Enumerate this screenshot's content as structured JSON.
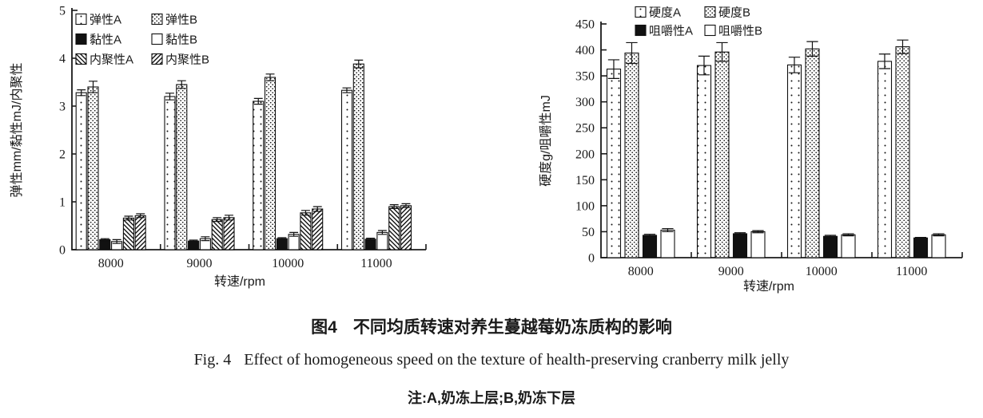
{
  "figure": {
    "caption_zh": {
      "label": "图4",
      "text": "不同均质转速对养生蔓越莓奶冻质构的影响"
    },
    "caption_en": {
      "label": "Fig. 4",
      "text": "Effect of homogeneous speed on the texture of health-preserving cranberry milk jelly"
    },
    "note": "注:A,奶冻上层;B,奶冻下层"
  },
  "chart_data": [
    {
      "type": "bar",
      "panel": "left",
      "xlabel": "转速/rpm",
      "ylabel": "弹性mm/黏性mJ/内聚性",
      "categories": [
        "8000",
        "9000",
        "10000",
        "11000"
      ],
      "ylim": [
        0,
        5
      ],
      "ytick_step": 1,
      "grid": false,
      "legend_position": "top-left, 2 columns x 3 rows",
      "bar_outline": "#111111",
      "error_bars": true,
      "series": [
        {
          "name": "弹性A",
          "pattern": "dots-sparse",
          "values": [
            3.28,
            3.2,
            3.1,
            3.33
          ],
          "errors": [
            0.06,
            0.07,
            0.06,
            0.05
          ]
        },
        {
          "name": "弹性B",
          "pattern": "dots-dense",
          "values": [
            3.4,
            3.45,
            3.6,
            3.88
          ],
          "errors": [
            0.12,
            0.08,
            0.07,
            0.08
          ]
        },
        {
          "name": "黏性A",
          "pattern": "solid-black",
          "values": [
            0.21,
            0.18,
            0.23,
            0.22
          ],
          "errors": [
            0.02,
            0.02,
            0.02,
            0.02
          ]
        },
        {
          "name": "黏性B",
          "pattern": "plain-white",
          "values": [
            0.17,
            0.23,
            0.32,
            0.36
          ],
          "errors": [
            0.04,
            0.04,
            0.04,
            0.04
          ]
        },
        {
          "name": "内聚性A",
          "pattern": "hatch-back",
          "values": [
            0.66,
            0.63,
            0.77,
            0.9
          ],
          "errors": [
            0.04,
            0.04,
            0.05,
            0.04
          ]
        },
        {
          "name": "内聚性B",
          "pattern": "hatch-fwd",
          "values": [
            0.71,
            0.67,
            0.85,
            0.92
          ],
          "errors": [
            0.04,
            0.05,
            0.05,
            0.04
          ]
        }
      ]
    },
    {
      "type": "bar",
      "panel": "right",
      "xlabel": "转速/rpm",
      "ylabel": "硬度g/咀嚼性mJ",
      "categories": [
        "8000",
        "9000",
        "10000",
        "11000"
      ],
      "ylim": [
        0,
        450
      ],
      "ytick_step": 50,
      "grid": false,
      "legend_position": "top-center, 2 columns x 2 rows",
      "bar_outline": "#111111",
      "error_bars": true,
      "series": [
        {
          "name": "硬度A",
          "pattern": "dots-sparse",
          "values": [
            363,
            370,
            371,
            378
          ],
          "errors": [
            18,
            18,
            15,
            14
          ]
        },
        {
          "name": "硬度B",
          "pattern": "dots-dense",
          "values": [
            394,
            396,
            402,
            406
          ],
          "errors": [
            20,
            18,
            14,
            13
          ]
        },
        {
          "name": "咀嚼性A",
          "pattern": "solid-black",
          "values": [
            43,
            46,
            41,
            38
          ],
          "errors": [
            2,
            2,
            2,
            1
          ]
        },
        {
          "name": "咀嚼性B",
          "pattern": "plain-white",
          "values": [
            53,
            50,
            44,
            44
          ],
          "errors": [
            3,
            2,
            2,
            2
          ]
        }
      ]
    }
  ],
  "ink_color": "#1a1a1a"
}
